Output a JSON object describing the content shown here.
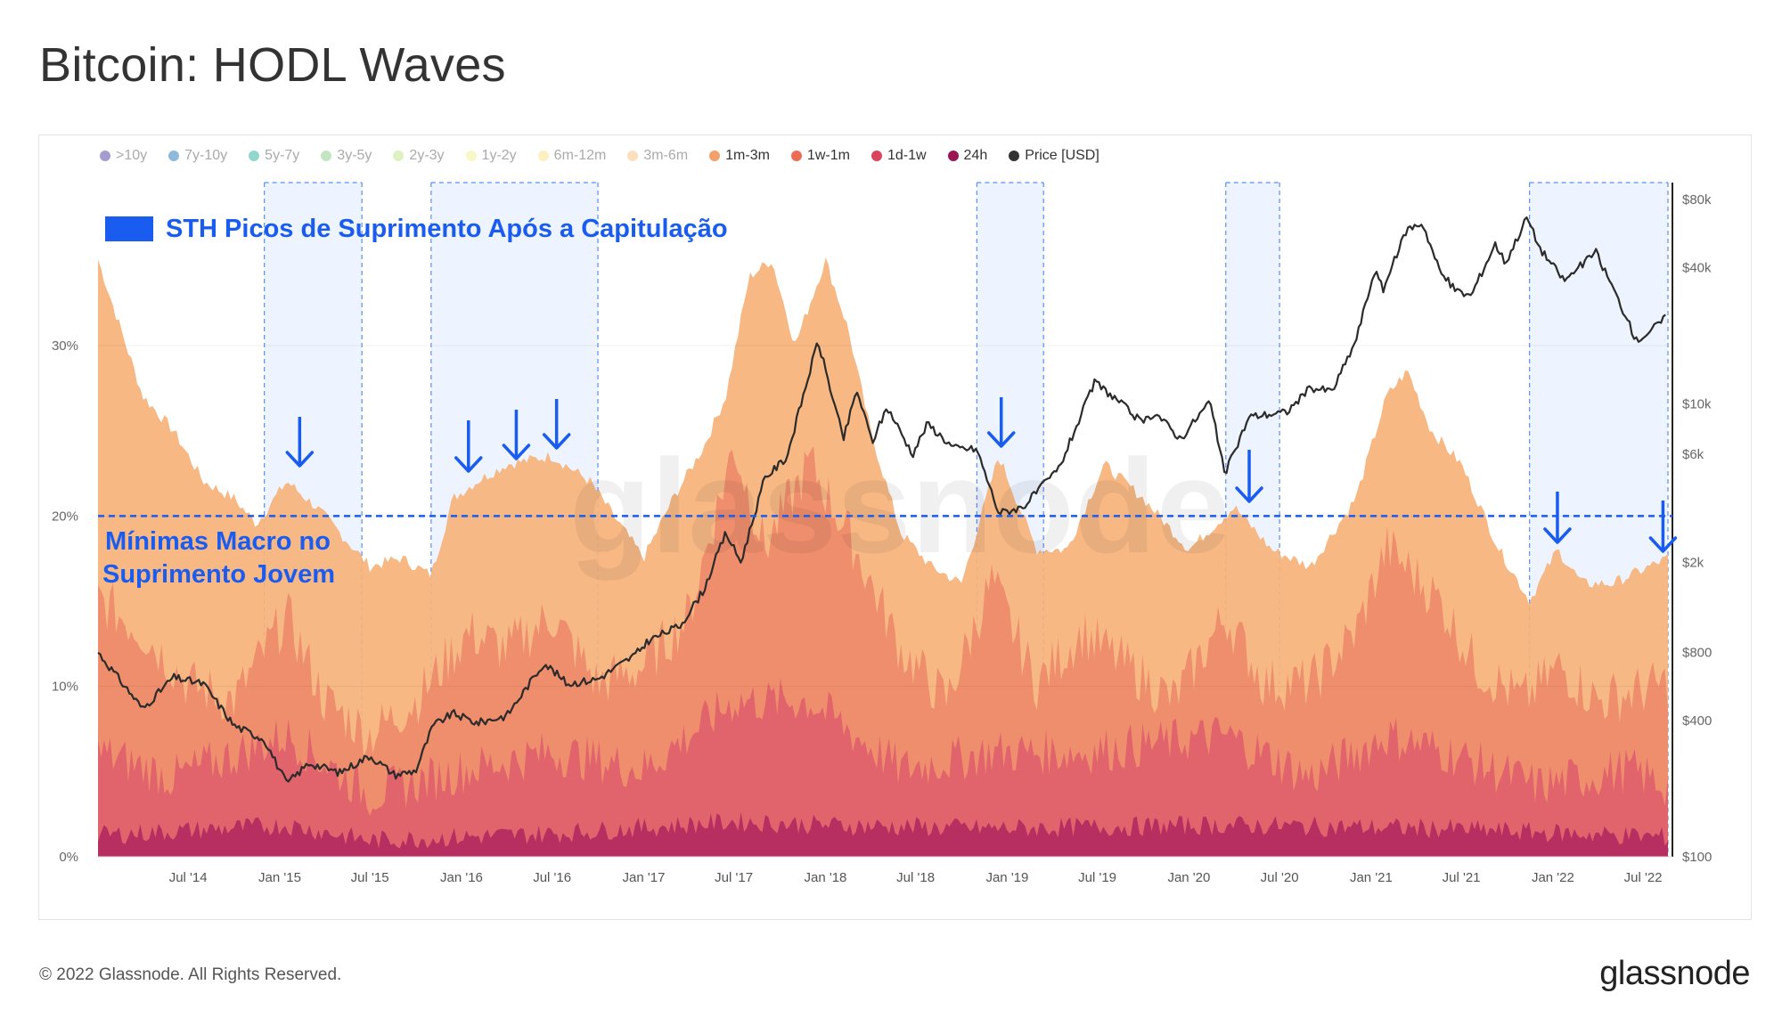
{
  "title": "Bitcoin: HODL Waves",
  "footer": "© 2022 Glassnode. All Rights Reserved.",
  "brand": "glassnode",
  "watermark": "glassnode",
  "legend": [
    {
      "label": ">10y",
      "color": "#5b4aa8",
      "active": false
    },
    {
      "label": "7y-10y",
      "color": "#2e7fc0",
      "active": false
    },
    {
      "label": "5y-7y",
      "color": "#3bb5a2",
      "active": false
    },
    {
      "label": "3y-5y",
      "color": "#8fd28f",
      "active": false
    },
    {
      "label": "2y-3y",
      "color": "#c3e58c",
      "active": false
    },
    {
      "label": "1y-2y",
      "color": "#f3f19a",
      "active": false
    },
    {
      "label": "6m-12m",
      "color": "#fbe48c",
      "active": false
    },
    {
      "label": "3m-6m",
      "color": "#f9c585",
      "active": false
    },
    {
      "label": "1m-3m",
      "color": "#f4a06a",
      "active": true
    },
    {
      "label": "1w-1m",
      "color": "#ec6c55",
      "active": true
    },
    {
      "label": "1d-1w",
      "color": "#d9455f",
      "active": true
    },
    {
      "label": "24h",
      "color": "#9a1553",
      "active": true
    },
    {
      "label": "Price [USD]",
      "color": "#333333",
      "active": true
    }
  ],
  "annotations": {
    "sth_label": "STH Picos de Suprimento Após a Capitulação",
    "macro_line1": "Mínimas Macro no",
    "macro_line2": "Suprimento Jovem",
    "macro_level_pct": 20,
    "accent": "#1a5cf0"
  },
  "chart_data": {
    "type": "area",
    "x_range": [
      "2014-01-01",
      "2022-08-20"
    ],
    "xticks": [
      "Jul '14",
      "Jan '15",
      "Jul '15",
      "Jan '16",
      "Jul '16",
      "Jan '17",
      "Jul '17",
      "Jan '18",
      "Jul '18",
      "Jan '19",
      "Jul '19",
      "Jan '20",
      "Jul '20",
      "Jan '21",
      "Jul '21",
      "Jan '22",
      "Jul '22"
    ],
    "y_left": {
      "ylim": [
        0,
        35
      ],
      "ticks": [
        "0%",
        "10%",
        "20%",
        "30%"
      ],
      "tick_values": [
        0,
        10,
        20,
        30
      ]
    },
    "y_right": {
      "scale": "log",
      "ylim": [
        100,
        90000
      ],
      "ticks": [
        "$100",
        "$400",
        "$800",
        "$2k",
        "$6k",
        "$10k",
        "$40k",
        "$80k"
      ],
      "tick_values": [
        100,
        400,
        800,
        2000,
        6000,
        10000,
        40000,
        80000
      ]
    },
    "highlight_periods": [
      [
        "2014-12-01",
        "2015-06-15"
      ],
      [
        "2015-11-01",
        "2016-10-01"
      ],
      [
        "2018-11-01",
        "2019-03-15"
      ],
      [
        "2020-03-15",
        "2020-07-01"
      ],
      [
        "2021-11-15",
        "2022-08-20"
      ]
    ],
    "arrows": [
      "2015-02-10",
      "2016-01-15",
      "2016-04-20",
      "2016-07-10",
      "2018-12-20",
      "2020-05-01",
      "2022-01-10",
      "2022-08-10"
    ],
    "series": [
      {
        "name": "1m-3m",
        "color": "#f6b27a",
        "values": [
          {
            "x": "2014-01-01",
            "y": 35
          },
          {
            "x": "2014-02-15",
            "y": 31
          },
          {
            "x": "2014-04-01",
            "y": 27
          },
          {
            "x": "2014-06-01",
            "y": 25
          },
          {
            "x": "2014-08-01",
            "y": 22
          },
          {
            "x": "2014-10-01",
            "y": 21
          },
          {
            "x": "2014-11-15",
            "y": 19.5
          },
          {
            "x": "2015-01-15",
            "y": 22
          },
          {
            "x": "2015-03-15",
            "y": 20.5
          },
          {
            "x": "2015-05-01",
            "y": 19
          },
          {
            "x": "2015-07-01",
            "y": 17
          },
          {
            "x": "2015-09-01",
            "y": 17.5
          },
          {
            "x": "2015-11-01",
            "y": 16.5
          },
          {
            "x": "2015-12-15",
            "y": 21
          },
          {
            "x": "2016-02-01",
            "y": 22
          },
          {
            "x": "2016-04-01",
            "y": 23
          },
          {
            "x": "2016-07-01",
            "y": 23.5
          },
          {
            "x": "2016-09-15",
            "y": 22
          },
          {
            "x": "2016-11-01",
            "y": 20
          },
          {
            "x": "2017-01-01",
            "y": 17.5
          },
          {
            "x": "2017-03-01",
            "y": 21
          },
          {
            "x": "2017-05-01",
            "y": 24
          },
          {
            "x": "2017-06-15",
            "y": 27
          },
          {
            "x": "2017-08-01",
            "y": 34
          },
          {
            "x": "2017-09-15",
            "y": 35
          },
          {
            "x": "2017-11-01",
            "y": 30
          },
          {
            "x": "2018-01-01",
            "y": 35
          },
          {
            "x": "2018-02-15",
            "y": 31
          },
          {
            "x": "2018-04-01",
            "y": 25
          },
          {
            "x": "2018-06-01",
            "y": 19
          },
          {
            "x": "2018-08-01",
            "y": 17
          },
          {
            "x": "2018-10-01",
            "y": 16
          },
          {
            "x": "2018-12-15",
            "y": 23.5
          },
          {
            "x": "2019-03-01",
            "y": 18
          },
          {
            "x": "2019-05-01",
            "y": 18
          },
          {
            "x": "2019-07-15",
            "y": 23
          },
          {
            "x": "2019-10-01",
            "y": 21
          },
          {
            "x": "2020-01-01",
            "y": 18
          },
          {
            "x": "2020-04-01",
            "y": 20.5
          },
          {
            "x": "2020-06-15",
            "y": 18
          },
          {
            "x": "2020-09-01",
            "y": 17
          },
          {
            "x": "2020-12-01",
            "y": 21
          },
          {
            "x": "2021-02-01",
            "y": 27
          },
          {
            "x": "2021-03-15",
            "y": 28.5
          },
          {
            "x": "2021-05-01",
            "y": 25
          },
          {
            "x": "2021-07-01",
            "y": 23
          },
          {
            "x": "2021-09-15",
            "y": 18
          },
          {
            "x": "2021-11-15",
            "y": 15
          },
          {
            "x": "2022-01-10",
            "y": 18
          },
          {
            "x": "2022-03-01",
            "y": 16
          },
          {
            "x": "2022-05-01",
            "y": 16
          },
          {
            "x": "2022-08-20",
            "y": 17.5
          }
        ]
      },
      {
        "name": "1w-1m",
        "color": "#ee8a6a",
        "values": [
          {
            "x": "2014-01-01",
            "y": 15
          },
          {
            "x": "2014-04-01",
            "y": 13
          },
          {
            "x": "2014-07-01",
            "y": 10
          },
          {
            "x": "2014-10-01",
            "y": 9
          },
          {
            "x": "2015-01-15",
            "y": 14
          },
          {
            "x": "2015-04-01",
            "y": 9
          },
          {
            "x": "2015-07-01",
            "y": 7
          },
          {
            "x": "2015-10-01",
            "y": 9
          },
          {
            "x": "2016-01-15",
            "y": 13
          },
          {
            "x": "2016-04-01",
            "y": 12
          },
          {
            "x": "2016-07-01",
            "y": 14
          },
          {
            "x": "2016-10-01",
            "y": 10
          },
          {
            "x": "2017-01-01",
            "y": 11
          },
          {
            "x": "2017-04-01",
            "y": 14
          },
          {
            "x": "2017-07-01",
            "y": 24
          },
          {
            "x": "2017-09-01",
            "y": 18
          },
          {
            "x": "2017-12-01",
            "y": 23
          },
          {
            "x": "2018-03-01",
            "y": 18
          },
          {
            "x": "2018-06-01",
            "y": 12
          },
          {
            "x": "2018-09-01",
            "y": 9
          },
          {
            "x": "2018-12-01",
            "y": 16
          },
          {
            "x": "2019-03-01",
            "y": 10
          },
          {
            "x": "2019-06-01",
            "y": 13
          },
          {
            "x": "2019-09-01",
            "y": 11
          },
          {
            "x": "2019-12-01",
            "y": 9
          },
          {
            "x": "2020-03-15",
            "y": 14
          },
          {
            "x": "2020-06-01",
            "y": 10
          },
          {
            "x": "2020-09-01",
            "y": 10
          },
          {
            "x": "2020-12-01",
            "y": 13
          },
          {
            "x": "2021-02-01",
            "y": 18
          },
          {
            "x": "2021-05-15",
            "y": 15
          },
          {
            "x": "2021-08-01",
            "y": 11
          },
          {
            "x": "2021-11-01",
            "y": 9
          },
          {
            "x": "2022-01-15",
            "y": 11
          },
          {
            "x": "2022-04-01",
            "y": 9
          },
          {
            "x": "2022-08-20",
            "y": 10
          }
        ]
      },
      {
        "name": "1d-1w",
        "color": "#df5f6c",
        "values": [
          {
            "x": "2014-01-01",
            "y": 6
          },
          {
            "x": "2014-06-01",
            "y": 4.5
          },
          {
            "x": "2015-01-15",
            "y": 7
          },
          {
            "x": "2015-07-01",
            "y": 3.5
          },
          {
            "x": "2016-01-15",
            "y": 5
          },
          {
            "x": "2016-07-01",
            "y": 6
          },
          {
            "x": "2017-01-01",
            "y": 5
          },
          {
            "x": "2017-07-01",
            "y": 9
          },
          {
            "x": "2017-12-01",
            "y": 9
          },
          {
            "x": "2018-06-01",
            "y": 5
          },
          {
            "x": "2018-12-01",
            "y": 6
          },
          {
            "x": "2019-06-01",
            "y": 6
          },
          {
            "x": "2020-03-15",
            "y": 7
          },
          {
            "x": "2020-09-01",
            "y": 4.5
          },
          {
            "x": "2021-02-01",
            "y": 7
          },
          {
            "x": "2021-06-01",
            "y": 6
          },
          {
            "x": "2021-12-01",
            "y": 4
          },
          {
            "x": "2022-06-01",
            "y": 5
          },
          {
            "x": "2022-08-20",
            "y": 4
          }
        ]
      },
      {
        "name": "24h",
        "color": "#b3295f",
        "values": [
          {
            "x": "2014-01-01",
            "y": 1.2
          },
          {
            "x": "2015-01-15",
            "y": 1.8
          },
          {
            "x": "2015-07-01",
            "y": 0.9
          },
          {
            "x": "2016-07-01",
            "y": 1.3
          },
          {
            "x": "2017-07-01",
            "y": 2
          },
          {
            "x": "2018-01-01",
            "y": 1.8
          },
          {
            "x": "2018-12-01",
            "y": 1.6
          },
          {
            "x": "2020-03-15",
            "y": 1.8
          },
          {
            "x": "2021-05-15",
            "y": 1.6
          },
          {
            "x": "2022-08-20",
            "y": 1.1
          }
        ]
      },
      {
        "name": "Price [USD]",
        "color": "#2b2b2b",
        "axis": "right",
        "values": [
          {
            "x": "2014-01-01",
            "y": 800
          },
          {
            "x": "2014-02-15",
            "y": 600
          },
          {
            "x": "2014-04-01",
            "y": 450
          },
          {
            "x": "2014-06-01",
            "y": 620
          },
          {
            "x": "2014-08-01",
            "y": 580
          },
          {
            "x": "2014-10-01",
            "y": 380
          },
          {
            "x": "2014-12-01",
            "y": 330
          },
          {
            "x": "2015-01-15",
            "y": 210
          },
          {
            "x": "2015-03-01",
            "y": 260
          },
          {
            "x": "2015-05-01",
            "y": 235
          },
          {
            "x": "2015-07-01",
            "y": 280
          },
          {
            "x": "2015-08-20",
            "y": 230
          },
          {
            "x": "2015-10-01",
            "y": 240
          },
          {
            "x": "2015-11-05",
            "y": 380
          },
          {
            "x": "2015-12-15",
            "y": 430
          },
          {
            "x": "2016-02-01",
            "y": 390
          },
          {
            "x": "2016-04-01",
            "y": 420
          },
          {
            "x": "2016-06-15",
            "y": 720
          },
          {
            "x": "2016-08-01",
            "y": 580
          },
          {
            "x": "2016-10-01",
            "y": 610
          },
          {
            "x": "2016-12-15",
            "y": 780
          },
          {
            "x": "2017-01-10",
            "y": 900
          },
          {
            "x": "2017-03-15",
            "y": 1050
          },
          {
            "x": "2017-05-01",
            "y": 1500
          },
          {
            "x": "2017-06-15",
            "y": 2700
          },
          {
            "x": "2017-07-15",
            "y": 2000
          },
          {
            "x": "2017-09-01",
            "y": 4700
          },
          {
            "x": "2017-10-15",
            "y": 5800
          },
          {
            "x": "2017-12-17",
            "y": 19000
          },
          {
            "x": "2018-02-06",
            "y": 7000
          },
          {
            "x": "2018-03-05",
            "y": 11500
          },
          {
            "x": "2018-04-05",
            "y": 6800
          },
          {
            "x": "2018-05-05",
            "y": 9700
          },
          {
            "x": "2018-06-25",
            "y": 6000
          },
          {
            "x": "2018-07-25",
            "y": 8200
          },
          {
            "x": "2018-09-15",
            "y": 6400
          },
          {
            "x": "2018-11-01",
            "y": 6300
          },
          {
            "x": "2018-12-15",
            "y": 3300
          },
          {
            "x": "2019-02-01",
            "y": 3500
          },
          {
            "x": "2019-04-15",
            "y": 5200
          },
          {
            "x": "2019-06-26",
            "y": 12500
          },
          {
            "x": "2019-08-15",
            "y": 10200
          },
          {
            "x": "2019-09-30",
            "y": 8200
          },
          {
            "x": "2019-10-25",
            "y": 9200
          },
          {
            "x": "2019-12-15",
            "y": 7000
          },
          {
            "x": "2020-02-12",
            "y": 10300
          },
          {
            "x": "2020-03-13",
            "y": 4900
          },
          {
            "x": "2020-05-01",
            "y": 8800
          },
          {
            "x": "2020-07-15",
            "y": 9200
          },
          {
            "x": "2020-09-01",
            "y": 11800
          },
          {
            "x": "2020-10-15",
            "y": 11400
          },
          {
            "x": "2020-12-01",
            "y": 19000
          },
          {
            "x": "2021-01-08",
            "y": 39000
          },
          {
            "x": "2021-01-25",
            "y": 32000
          },
          {
            "x": "2021-03-13",
            "y": 59000
          },
          {
            "x": "2021-04-14",
            "y": 63000
          },
          {
            "x": "2021-05-20",
            "y": 38000
          },
          {
            "x": "2021-06-22",
            "y": 31500
          },
          {
            "x": "2021-07-20",
            "y": 30000
          },
          {
            "x": "2021-09-07",
            "y": 51000
          },
          {
            "x": "2021-09-28",
            "y": 42000
          },
          {
            "x": "2021-11-10",
            "y": 67000
          },
          {
            "x": "2021-12-05",
            "y": 49000
          },
          {
            "x": "2022-01-24",
            "y": 35000
          },
          {
            "x": "2022-03-28",
            "y": 47000
          },
          {
            "x": "2022-05-12",
            "y": 29000
          },
          {
            "x": "2022-06-18",
            "y": 19000
          },
          {
            "x": "2022-07-15",
            "y": 21000
          },
          {
            "x": "2022-08-15",
            "y": 24000
          }
        ]
      }
    ]
  }
}
